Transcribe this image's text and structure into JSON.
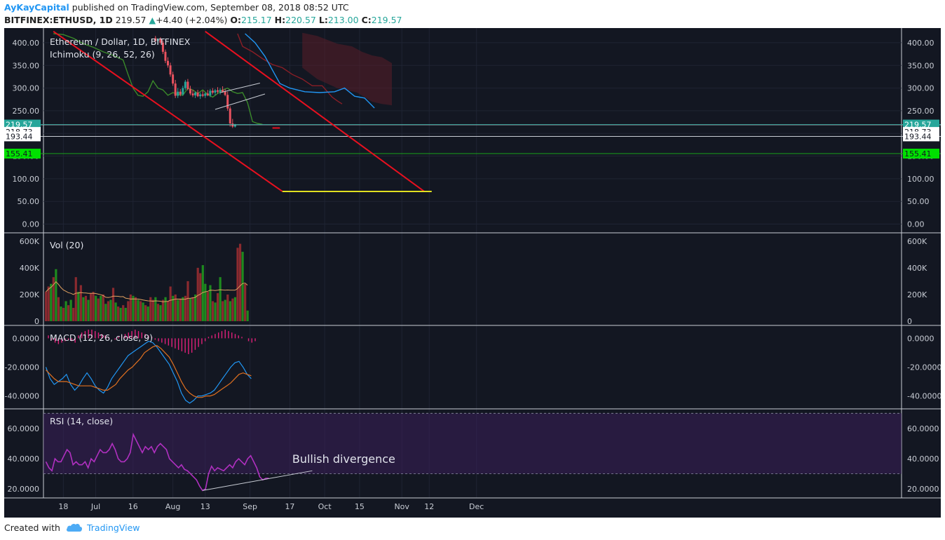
{
  "header": {
    "author": "AyKayCapital",
    "published": "published on TradingView.com, September 08, 2018 08:52 UTC",
    "symbol": "BITFINEX:ETHUSD, 1D",
    "last": "219.57",
    "change": "+4.40 (+2.04%)",
    "o_label": "O:",
    "o_value": "215.17",
    "h_label": "H:",
    "h_value": "220.57",
    "l_label": "L:",
    "l_value": "213.00",
    "c_label": "C:",
    "c_value": "219.57"
  },
  "footer": {
    "created_with": "Created with",
    "brand": "TradingView"
  },
  "colors": {
    "background": "#131722",
    "up": "#1e8a1e",
    "down": "#e8525f",
    "trendline": "#e8101f",
    "target": "#e0e020",
    "rsi_line": "#b030c0",
    "macd_line": "#2196f3",
    "signal_line": "#e07020",
    "hist": "#e0207a"
  },
  "chart_data": [
    {
      "type": "candlestick",
      "title": "Ethereum / Dollar, 1D, BITFINEX",
      "indicator": "Ichimoku (9, 26, 52, 26)",
      "ylim": [
        -10,
        420
      ],
      "y_ticks": [
        "400.00",
        "350.00",
        "300.00",
        "250.00",
        "200.00",
        "150.00",
        "100.00",
        "50.00",
        "0.00"
      ],
      "x_ticks": [
        "18",
        "Jul",
        "16",
        "Aug",
        "13",
        "Sep",
        "17",
        "Oct",
        "15",
        "Nov",
        "12",
        "Dec"
      ],
      "price_labels": [
        {
          "text": "219.57",
          "value": 219.57,
          "style": "current"
        },
        {
          "text": "218.73",
          "value": 218.73,
          "style": "white"
        },
        {
          "text": "193.44",
          "value": 193.44,
          "style": "white"
        },
        {
          "text": "155.41",
          "value": 155.41,
          "style": "green"
        }
      ],
      "candles_aug_sep": [
        {
          "o": 410,
          "h": 415,
          "l": 402,
          "c": 404
        },
        {
          "o": 404,
          "h": 410,
          "l": 398,
          "c": 408
        },
        {
          "o": 408,
          "h": 412,
          "l": 396,
          "c": 400
        },
        {
          "o": 400,
          "h": 405,
          "l": 375,
          "c": 380
        },
        {
          "o": 380,
          "h": 385,
          "l": 355,
          "c": 360
        },
        {
          "o": 360,
          "h": 368,
          "l": 345,
          "c": 350
        },
        {
          "o": 350,
          "h": 356,
          "l": 325,
          "c": 330
        },
        {
          "o": 330,
          "h": 336,
          "l": 305,
          "c": 310
        },
        {
          "o": 310,
          "h": 318,
          "l": 278,
          "c": 283
        },
        {
          "o": 283,
          "h": 300,
          "l": 278,
          "c": 292
        },
        {
          "o": 292,
          "h": 298,
          "l": 282,
          "c": 286
        },
        {
          "o": 286,
          "h": 305,
          "l": 283,
          "c": 300
        },
        {
          "o": 300,
          "h": 318,
          "l": 296,
          "c": 314
        },
        {
          "o": 314,
          "h": 320,
          "l": 295,
          "c": 298
        },
        {
          "o": 298,
          "h": 305,
          "l": 284,
          "c": 288
        },
        {
          "o": 288,
          "h": 296,
          "l": 280,
          "c": 284
        },
        {
          "o": 284,
          "h": 292,
          "l": 278,
          "c": 290
        },
        {
          "o": 290,
          "h": 296,
          "l": 280,
          "c": 282
        },
        {
          "o": 282,
          "h": 290,
          "l": 276,
          "c": 286
        },
        {
          "o": 286,
          "h": 294,
          "l": 280,
          "c": 283
        },
        {
          "o": 283,
          "h": 290,
          "l": 278,
          "c": 288
        },
        {
          "o": 288,
          "h": 296,
          "l": 282,
          "c": 284
        },
        {
          "o": 284,
          "h": 298,
          "l": 280,
          "c": 294
        },
        {
          "o": 294,
          "h": 300,
          "l": 286,
          "c": 290
        },
        {
          "o": 290,
          "h": 298,
          "l": 284,
          "c": 295
        },
        {
          "o": 295,
          "h": 302,
          "l": 288,
          "c": 292
        },
        {
          "o": 292,
          "h": 300,
          "l": 286,
          "c": 296
        },
        {
          "o": 296,
          "h": 304,
          "l": 290,
          "c": 292
        },
        {
          "o": 292,
          "h": 298,
          "l": 282,
          "c": 285
        },
        {
          "o": 285,
          "h": 292,
          "l": 250,
          "c": 255
        },
        {
          "o": 255,
          "h": 260,
          "l": 215,
          "c": 222
        },
        {
          "o": 222,
          "h": 232,
          "l": 212,
          "c": 215
        },
        {
          "o": 215,
          "h": 221,
          "l": 213,
          "c": 219.57
        }
      ],
      "trendlines": [
        {
          "from": [
            "Jun 14",
            425
          ],
          "to": [
            "Sep 14",
            72
          ]
        },
        {
          "from": [
            "Aug 14",
            425
          ],
          "to": [
            "Nov 10",
            72
          ]
        }
      ],
      "target_line": {
        "from": "Sep 14",
        "to": "Nov 13",
        "value": 72
      },
      "short_red_line": {
        "from": "Sep 10",
        "to": "Sep 13",
        "value": 212
      }
    },
    {
      "type": "bar",
      "title": "Vol (20)",
      "ylim": [
        0,
        620000
      ],
      "y_ticks": [
        "600K",
        "400K",
        "200K",
        "0"
      ],
      "values": [
        220,
        260,
        280,
        330,
        390,
        180,
        110,
        100,
        150,
        120,
        160,
        100,
        330,
        220,
        270,
        180,
        190,
        160,
        210,
        220,
        190,
        170,
        190,
        200,
        130,
        150,
        160,
        250,
        140,
        110,
        100,
        120,
        100,
        150,
        200,
        190,
        180,
        160,
        150,
        140,
        120,
        110,
        180,
        160,
        180,
        130,
        120,
        160,
        180,
        150,
        260,
        190,
        200,
        160,
        170,
        180,
        190,
        300,
        170,
        180,
        200,
        400,
        360,
        420,
        280,
        220,
        270,
        150,
        140,
        210,
        330,
        150,
        160,
        200,
        150,
        170,
        180,
        550,
        580,
        520,
        280,
        80
      ],
      "down_flags": [
        1,
        1,
        0,
        1,
        0,
        1,
        0,
        1,
        0,
        1,
        0,
        1,
        1,
        0,
        1,
        0,
        1,
        0,
        1,
        1,
        0,
        1,
        0,
        1,
        0,
        1,
        0,
        1,
        0,
        1,
        0,
        1,
        0,
        1,
        1,
        0,
        1,
        0,
        1,
        0,
        1,
        0,
        1,
        1,
        0,
        1,
        0,
        1,
        0,
        1,
        1,
        0,
        1,
        0,
        1,
        0,
        1,
        1,
        0,
        1,
        0,
        1,
        1,
        0,
        0,
        1,
        0,
        1,
        0,
        1,
        0,
        1,
        0,
        1,
        0,
        1,
        0,
        1,
        1,
        0,
        1,
        0
      ]
    },
    {
      "type": "line",
      "title": "MACD (12, 26, close, 9)",
      "ylim": [
        -47,
        7
      ],
      "y_ticks": [
        "0.0000",
        "-20.0000",
        "-40.0000"
      ],
      "series": [
        {
          "name": "MACD",
          "values": [
            -20,
            -28,
            -32,
            -30,
            -28,
            -25,
            -32,
            -36,
            -33,
            -28,
            -24,
            -28,
            -33,
            -36,
            -38,
            -34,
            -28,
            -24,
            -20,
            -16,
            -12,
            -10,
            -8,
            -6,
            -4,
            -2,
            -3,
            -6,
            -10,
            -14,
            -18,
            -24,
            -30,
            -38,
            -43,
            -45,
            -43,
            -40,
            -40,
            -39,
            -38,
            -36,
            -32,
            -28,
            -24,
            -20,
            -17,
            -16,
            -20,
            -25,
            -28
          ]
        },
        {
          "name": "Signal",
          "values": [
            -22,
            -25,
            -28,
            -30,
            -30,
            -30,
            -31,
            -32,
            -33,
            -33,
            -33,
            -33,
            -34,
            -35,
            -36,
            -36,
            -34,
            -32,
            -28,
            -25,
            -22,
            -20,
            -17,
            -14,
            -10,
            -8,
            -6,
            -5,
            -7,
            -10,
            -13,
            -18,
            -24,
            -30,
            -35,
            -38,
            -40,
            -41,
            -41,
            -40,
            -40,
            -39,
            -37,
            -35,
            -33,
            -31,
            -28,
            -25,
            -24,
            -25,
            -26
          ]
        }
      ],
      "histogram": [
        2,
        -1,
        -3,
        -4,
        -3,
        -2,
        -1,
        -2,
        -3,
        2,
        4,
        5,
        6,
        6,
        5,
        4,
        3,
        2,
        1,
        0,
        -1,
        1,
        2,
        3,
        4,
        5,
        6,
        5,
        4,
        3,
        2,
        1,
        -1,
        -2,
        -3,
        -4,
        -5,
        -6,
        -7,
        -8,
        -9,
        -10,
        -11,
        -10,
        -8,
        -6,
        -4,
        -2,
        1,
        2,
        3,
        4,
        5,
        6,
        5,
        4,
        3,
        2,
        1,
        0,
        -2,
        -3,
        -2
      ]
    },
    {
      "type": "line",
      "title": "RSI (14, close)",
      "ylim": [
        15,
        72
      ],
      "y_ticks": [
        "60.0000",
        "40.0000",
        "20.0000"
      ],
      "band": [
        30,
        70
      ],
      "series": [
        {
          "name": "RSI",
          "values": [
            38,
            34,
            32,
            40,
            38,
            38,
            42,
            46,
            44,
            36,
            38,
            36,
            36,
            38,
            34,
            40,
            38,
            42,
            46,
            44,
            44,
            46,
            50,
            46,
            40,
            38,
            38,
            40,
            44,
            56,
            52,
            48,
            44,
            48,
            46,
            48,
            44,
            48,
            50,
            48,
            46,
            40,
            38,
            36,
            34,
            36,
            33,
            32,
            30,
            28,
            26,
            22,
            19,
            20,
            30,
            35,
            32,
            34,
            33,
            32,
            34,
            36,
            34,
            38,
            40,
            38,
            36,
            40,
            42,
            38,
            34,
            28,
            26,
            27,
            27
          ]
        }
      ],
      "annotations": [
        {
          "text": "Bullish divergence",
          "at": [
            "Sep 25",
            40
          ]
        }
      ],
      "divergence_line": {
        "from": [
          "Aug 13",
          19
        ],
        "to": [
          "Sep 26",
          32
        ]
      }
    }
  ]
}
